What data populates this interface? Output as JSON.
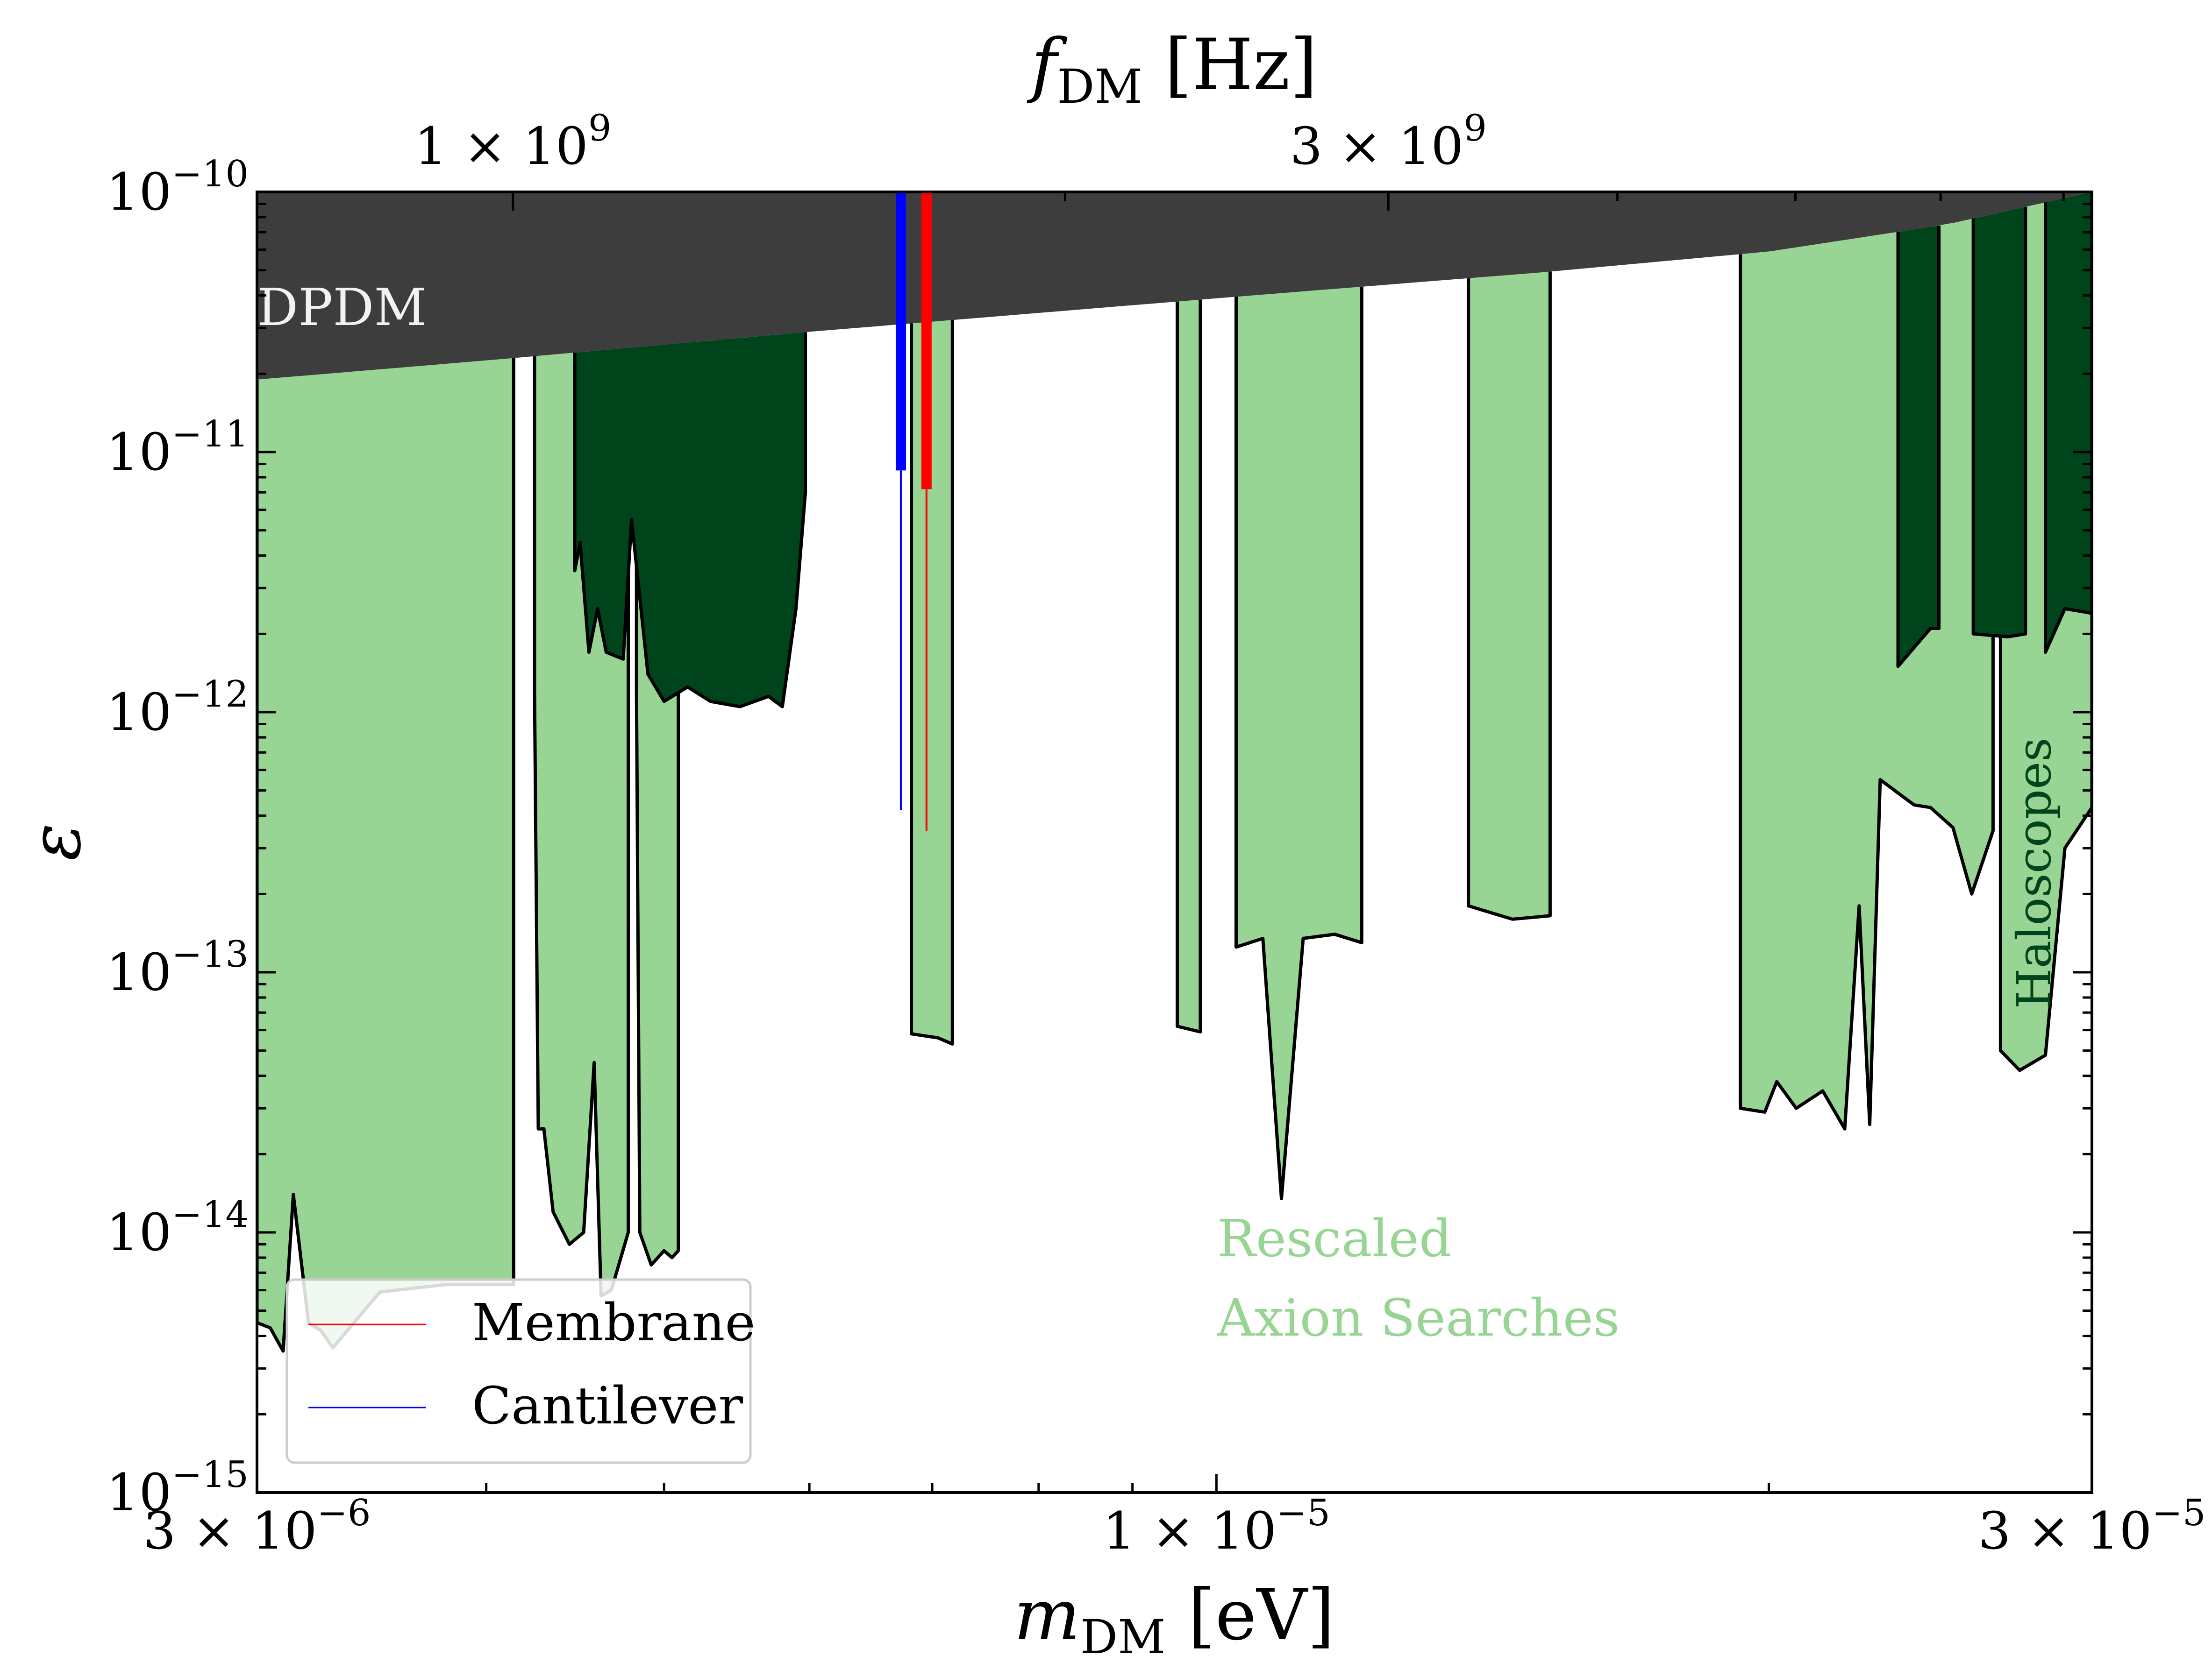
{
  "chart_data": {
    "type": "area",
    "x_scale": "log",
    "y_scale": "log",
    "xlim": [
      3e-06,
      3e-05
    ],
    "ylim": [
      1e-15,
      1e-10
    ],
    "xlabel": {
      "sym": "m",
      "sub": "DM",
      "unit": "[eV]"
    },
    "top_axis_label": {
      "sym": "f",
      "sub": "DM",
      "unit": "[Hz]"
    },
    "ylabel": "ε",
    "colors": {
      "dpdm": "#3d3d3d",
      "haloscope": "#00441b",
      "rescaled": "#98d594",
      "membrane": "#ff0000",
      "cantilever": "#0000ff",
      "outline": "#000000"
    },
    "y_ticks": [
      {
        "value": 1e-10,
        "mant": "10",
        "exp": "−10"
      },
      {
        "value": 1e-11,
        "mant": "10",
        "exp": "−11"
      },
      {
        "value": 1e-12,
        "mant": "10",
        "exp": "−12"
      },
      {
        "value": 1e-13,
        "mant": "10",
        "exp": "−13"
      },
      {
        "value": 1e-14,
        "mant": "10",
        "exp": "−14"
      },
      {
        "value": 1e-15,
        "mant": "10",
        "exp": "−15"
      }
    ],
    "x_ticks": [
      {
        "value": 3e-06,
        "coef": "3",
        "times": "×",
        "mant": "10",
        "exp": "−6"
      },
      {
        "value": 1e-05,
        "coef": "1",
        "times": "×",
        "mant": "10",
        "exp": "−5"
      },
      {
        "value": 3e-05,
        "coef": "3",
        "times": "×",
        "mant": "10",
        "exp": "−5"
      }
    ],
    "x_minor_ticks": [
      4e-06,
      5e-06,
      6e-06,
      7e-06,
      8e-06,
      9e-06,
      2e-05
    ],
    "top_ticks": [
      {
        "mass": 4.136e-06,
        "coef": "1",
        "times": "×",
        "mant": "10",
        "exp": "9"
      },
      {
        "mass": 1.2407e-05,
        "coef": "3",
        "times": "×",
        "mant": "10",
        "exp": "9"
      }
    ],
    "top_minor_ticks_mass": [
      8.27e-06,
      1.654e-05,
      2.068e-05,
      2.481e-05,
      2.895e-05
    ],
    "dpdm_boundary": [
      [
        3e-06,
        1.9e-11
      ],
      [
        4e-06,
        2.25e-11
      ],
      [
        6e-06,
        2.9e-11
      ],
      [
        1e-05,
        3.9e-11
      ],
      [
        1.5e-05,
        4.9e-11
      ],
      [
        2e-05,
        5.9e-11
      ],
      [
        2.5e-05,
        7.5e-11
      ],
      [
        3e-05,
        1e-10
      ]
    ],
    "haloscope_regions": [
      [
        [
          4.47e-06,
          3.5e-12
        ],
        [
          4.5e-06,
          4.5e-12
        ],
        [
          4.55e-06,
          1.7e-12
        ],
        [
          4.6e-06,
          2.5e-12
        ],
        [
          4.65e-06,
          1.7e-12
        ],
        [
          4.75e-06,
          1.6e-12
        ],
        [
          4.8e-06,
          5.5e-12
        ],
        [
          4.9e-06,
          1.4e-12
        ],
        [
          5e-06,
          1.1e-12
        ],
        [
          5.15e-06,
          1.25e-12
        ],
        [
          5.3e-06,
          1.1e-12
        ],
        [
          5.5e-06,
          1.05e-12
        ],
        [
          5.7e-06,
          1.15e-12
        ],
        [
          5.8e-06,
          1.05e-12
        ],
        [
          5.9e-06,
          2.5e-12
        ],
        [
          5.97e-06,
          7e-12
        ]
      ],
      [
        [
          2.352e-05,
          1.5e-12
        ],
        [
          2.45e-05,
          2.1e-12
        ],
        [
          2.476e-05,
          2.1e-12
        ]
      ],
      [
        [
          2.585e-05,
          2e-12
        ],
        [
          2.7e-05,
          1.95e-12
        ],
        [
          2.76e-05,
          2e-12
        ]
      ],
      [
        [
          2.83e-05,
          1.7e-12
        ],
        [
          2.9e-05,
          2.5e-12
        ],
        [
          3e-05,
          2.4e-12
        ]
      ]
    ],
    "rescaled_regions": [
      [
        [
          3e-06,
          4.5e-15
        ],
        [
          3.05e-06,
          4.3e-15
        ],
        [
          3.1e-06,
          3.5e-15
        ],
        [
          3.14e-06,
          1.4e-14
        ],
        [
          3.2e-06,
          4.5e-15
        ],
        [
          3.25e-06,
          4.2e-15
        ],
        [
          3.3e-06,
          3.6e-15
        ],
        [
          3.5e-06,
          5.9e-15
        ],
        [
          3.8e-06,
          6.3e-15
        ],
        [
          4.14e-06,
          6.3e-15
        ]
      ],
      [
        [
          4.25e-06,
          1.2e-12
        ],
        [
          4.27e-06,
          2.5e-14
        ],
        [
          4.3e-06,
          2.5e-14
        ],
        [
          4.35e-06,
          1.2e-14
        ],
        [
          4.44e-06,
          9e-15
        ],
        [
          4.52e-06,
          1e-14
        ],
        [
          4.58e-06,
          4.5e-14
        ],
        [
          4.62e-06,
          5.7e-15
        ],
        [
          4.68e-06,
          6e-15
        ],
        [
          4.78e-06,
          1e-14
        ]
      ],
      [
        [
          4.83e-06,
          1.2e-12
        ],
        [
          4.85e-06,
          1e-14
        ],
        [
          4.92e-06,
          7.5e-15
        ],
        [
          5e-06,
          8.5e-15
        ],
        [
          5.05e-06,
          8e-15
        ],
        [
          5.09e-06,
          8.5e-15
        ]
      ],
      [
        [
          6.82e-06,
          5.8e-14
        ],
        [
          7.05e-06,
          5.6e-14
        ],
        [
          7.18e-06,
          5.3e-14
        ]
      ],
      [
        [
          9.52e-06,
          6.2e-14
        ],
        [
          9.8e-06,
          5.9e-14
        ]
      ],
      [
        [
          1.025e-05,
          1.25e-13
        ],
        [
          1.06e-05,
          1.35e-13
        ],
        [
          1.085e-05,
          1.35e-14
        ],
        [
          1.115e-05,
          1.35e-13
        ],
        [
          1.16e-05,
          1.4e-13
        ],
        [
          1.2e-05,
          1.3e-13
        ]
      ],
      [
        [
          1.372e-05,
          1.8e-13
        ],
        [
          1.45e-05,
          1.6e-13
        ],
        [
          1.52e-05,
          1.65e-13
        ]
      ],
      [
        [
          1.93e-05,
          3e-14
        ],
        [
          1.99e-05,
          2.9e-14
        ],
        [
          2.02e-05,
          3.8e-14
        ],
        [
          2.07e-05,
          3e-14
        ],
        [
          2.14e-05,
          3.5e-14
        ],
        [
          2.2e-05,
          2.5e-14
        ],
        [
          2.24e-05,
          1.8e-13
        ],
        [
          2.27e-05,
          2.6e-14
        ],
        [
          2.3e-05,
          5.5e-13
        ],
        [
          2.4e-05,
          4.4e-13
        ],
        [
          2.45e-05,
          4.3e-13
        ],
        [
          2.52e-05,
          3.6e-13
        ],
        [
          2.58e-05,
          2e-13
        ],
        [
          2.65e-05,
          3.5e-13
        ]
      ],
      [
        [
          2.675e-05,
          5e-14
        ],
        [
          2.74e-05,
          4.2e-14
        ],
        [
          2.83e-05,
          4.8e-14
        ],
        [
          2.9e-05,
          3e-13
        ],
        [
          3e-05,
          4.3e-13
        ]
      ]
    ],
    "membrane": {
      "x": 6.95e-06,
      "thick_from": 7.2e-12,
      "thin_to": 3.5e-13
    },
    "cantilever": {
      "x": 6.73e-06,
      "thick_from": 8.5e-12,
      "thin_to": 4.2e-13
    },
    "annotations": {
      "dpdm": "DPDM",
      "haloscopes": "Haloscopes",
      "rescaled_line1": "Rescaled",
      "rescaled_line2": "Axion Searches"
    },
    "legend": {
      "location": "lower-left",
      "entries": [
        {
          "label": "Membrane",
          "color": "#ff0000"
        },
        {
          "label": "Cantilever",
          "color": "#0000ff"
        }
      ]
    }
  }
}
